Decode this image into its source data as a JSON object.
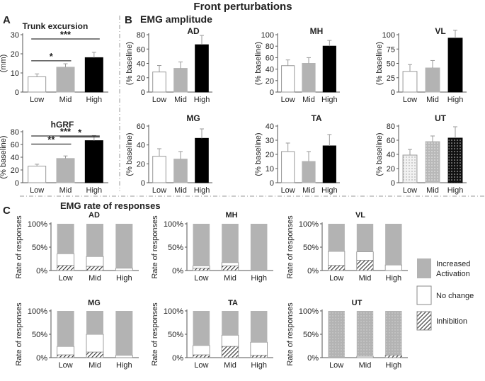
{
  "figure": {
    "title": "Front perturbations",
    "section_a_label": "A",
    "section_b_label": "B",
    "section_b_title": "EMG amplitude",
    "section_c_label": "C",
    "section_c_title": "EMG rate of responses"
  },
  "legend": {
    "increased_line1": "Increased",
    "increased_line2": "Activation",
    "nochange": "No change",
    "inhibition": "Inhibition"
  },
  "colors": {
    "low": "#ffffff",
    "mid": "#b3b3b3",
    "high": "#000000",
    "increased": "#b3b3b3",
    "nochange": "#ffffff",
    "inhibition_stripe": "#333333",
    "axis": "#555555",
    "divider": "#999999"
  },
  "chart_data": [
    {
      "id": "trunk",
      "type": "bar",
      "title": "Trunk excursion",
      "ylabel": "(mm)",
      "categories": [
        "Low",
        "Mid",
        "High"
      ],
      "values": [
        8,
        13,
        18
      ],
      "errors": [
        1.5,
        1.8,
        2.8
      ],
      "ylim": [
        0,
        30
      ],
      "yticks": [
        "0",
        "10",
        "20",
        "30"
      ],
      "significance": [
        {
          "from": 0,
          "to": 1,
          "label": "*"
        },
        {
          "from": 0,
          "to": 2,
          "label": "***"
        }
      ]
    },
    {
      "id": "hgrf",
      "type": "bar",
      "title": "hGRF",
      "ylabel": "(% baseline)",
      "categories": [
        "Low",
        "Mid",
        "High"
      ],
      "values": [
        26,
        38,
        66
      ],
      "errors": [
        3,
        4,
        8
      ],
      "ylim": [
        0,
        80
      ],
      "yticks": [
        "0",
        "20",
        "40",
        "60",
        "80"
      ],
      "significance": [
        {
          "from": 0,
          "to": 1,
          "label": "**"
        },
        {
          "from": 1,
          "to": 2,
          "label": "*"
        },
        {
          "from": 0,
          "to": 2,
          "label": "***"
        }
      ]
    },
    {
      "id": "amp_ad",
      "type": "bar",
      "title": "AD",
      "ylabel": "(% baseline)",
      "categories": [
        "Low",
        "Mid",
        "High"
      ],
      "values": [
        28,
        33,
        66
      ],
      "errors": [
        9,
        9,
        13
      ],
      "ylim": [
        0,
        80
      ],
      "yticks": [
        "0",
        "20",
        "40",
        "60",
        "80"
      ]
    },
    {
      "id": "amp_mh",
      "type": "bar",
      "title": "MH",
      "ylabel": "(% baseline)",
      "categories": [
        "Low",
        "Mid",
        "High"
      ],
      "values": [
        46,
        50,
        80
      ],
      "errors": [
        10,
        10,
        10
      ],
      "ylim": [
        0,
        100
      ],
      "yticks": [
        "0",
        "20",
        "40",
        "60",
        "80",
        "100"
      ]
    },
    {
      "id": "amp_vl",
      "type": "bar",
      "title": "VL",
      "ylabel": "(% baseline)",
      "categories": [
        "Low",
        "Mid",
        "High"
      ],
      "values": [
        36,
        42,
        94
      ],
      "errors": [
        12,
        13,
        14
      ],
      "ylim": [
        0,
        100
      ],
      "yticks": [
        "0",
        "25",
        "50",
        "75",
        "100"
      ]
    },
    {
      "id": "amp_mg",
      "type": "bar",
      "title": "MG",
      "ylabel": "(% baseline)",
      "categories": [
        "Low",
        "Mid",
        "High"
      ],
      "values": [
        28,
        25,
        47
      ],
      "errors": [
        8,
        8,
        10
      ],
      "ylim": [
        0,
        60
      ],
      "yticks": [
        "0",
        "20",
        "40",
        "60"
      ]
    },
    {
      "id": "amp_ta",
      "type": "bar",
      "title": "TA",
      "ylabel": "(% baseline)",
      "categories": [
        "Low",
        "Mid",
        "High"
      ],
      "values": [
        22,
        15,
        26
      ],
      "errors": [
        6,
        7,
        8
      ],
      "ylim": [
        0,
        40
      ],
      "yticks": [
        "0",
        "10",
        "20",
        "30",
        "40"
      ]
    },
    {
      "id": "amp_ut",
      "type": "bar",
      "title": "UT",
      "ylabel": "(% baseline)",
      "categories": [
        "Low",
        "Mid",
        "High"
      ],
      "values": [
        39,
        58,
        63
      ],
      "errors": [
        8,
        8,
        16
      ],
      "ylim": [
        0,
        80
      ],
      "yticks": [
        "0",
        "20",
        "40",
        "60",
        "80"
      ]
    },
    {
      "id": "rate_ad",
      "type": "stacked_bar",
      "title": "AD",
      "ylabel": "Rate of responses",
      "categories": [
        "Low",
        "Mid",
        "High"
      ],
      "yticks": [
        "0%",
        "50%",
        "100%"
      ],
      "series": [
        {
          "name": "Inhibition",
          "values": [
            11,
            9,
            0
          ]
        },
        {
          "name": "No change",
          "values": [
            25,
            21,
            5
          ]
        },
        {
          "name": "Increased Activation",
          "values": [
            64,
            70,
            95
          ]
        }
      ]
    },
    {
      "id": "rate_mh",
      "type": "stacked_bar",
      "title": "MH",
      "ylabel": "Rate of responses",
      "categories": [
        "Low",
        "Mid",
        "High"
      ],
      "yticks": [
        "0%",
        "50%",
        "100%"
      ],
      "series": [
        {
          "name": "Inhibition",
          "values": [
            5,
            10,
            0
          ]
        },
        {
          "name": "No change",
          "values": [
            5,
            7,
            0
          ]
        },
        {
          "name": "Increased Activation",
          "values": [
            90,
            83,
            100
          ]
        }
      ]
    },
    {
      "id": "rate_vl",
      "type": "stacked_bar",
      "title": "VL",
      "ylabel": "Rate of responses",
      "categories": [
        "Low",
        "Mid",
        "High"
      ],
      "yticks": [
        "0%",
        "50%",
        "100%"
      ],
      "series": [
        {
          "name": "Inhibition",
          "values": [
            11,
            22,
            0
          ]
        },
        {
          "name": "No change",
          "values": [
            30,
            18,
            12
          ]
        },
        {
          "name": "Increased Activation",
          "values": [
            59,
            60,
            88
          ]
        }
      ]
    },
    {
      "id": "rate_mg",
      "type": "stacked_bar",
      "title": "MG",
      "ylabel": "Rate of responses",
      "categories": [
        "Low",
        "Mid",
        "High"
      ],
      "yticks": [
        "0%",
        "50%",
        "100%"
      ],
      "series": [
        {
          "name": "Inhibition",
          "values": [
            6,
            12,
            0
          ]
        },
        {
          "name": "No change",
          "values": [
            18,
            38,
            5
          ]
        },
        {
          "name": "Increased Activation",
          "values": [
            76,
            50,
            95
          ]
        }
      ]
    },
    {
      "id": "rate_ta",
      "type": "stacked_bar",
      "title": "TA",
      "ylabel": "Rate of responses",
      "categories": [
        "Low",
        "Mid",
        "High"
      ],
      "yticks": [
        "0%",
        "50%",
        "100%"
      ],
      "series": [
        {
          "name": "Inhibition",
          "values": [
            6,
            24,
            5
          ]
        },
        {
          "name": "No change",
          "values": [
            20,
            24,
            28
          ]
        },
        {
          "name": "Increased Activation",
          "values": [
            74,
            52,
            67
          ]
        }
      ]
    },
    {
      "id": "rate_ut",
      "type": "stacked_bar",
      "title": "UT",
      "ylabel": "Rate of responses",
      "categories": [
        "Low",
        "Mid",
        "High"
      ],
      "yticks": [
        "0%",
        "50%",
        "100%"
      ],
      "series": [
        {
          "name": "Inhibition",
          "values": [
            0,
            0,
            5
          ]
        },
        {
          "name": "No change",
          "values": [
            0,
            3,
            0
          ]
        },
        {
          "name": "Increased Activation",
          "values": [
            100,
            97,
            95
          ]
        }
      ]
    }
  ]
}
